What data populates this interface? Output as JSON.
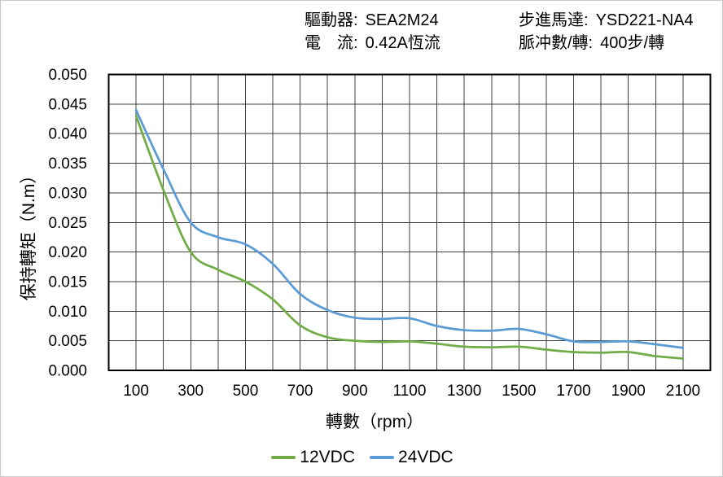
{
  "page": {
    "background": "#ffffff",
    "border_color": "#c9c9c9"
  },
  "header": {
    "rows": [
      {
        "label": "驅動器:",
        "value": "SEA2M24"
      },
      {
        "label": "電　流:",
        "value": "0.42A恆流"
      },
      {
        "label": "步進馬達:",
        "value": "YSD221-NA4"
      },
      {
        "label": "脈冲數/轉:",
        "value": "400步/轉"
      }
    ]
  },
  "chart_data": {
    "type": "line",
    "title": "",
    "xlabel": "轉數（rpm）",
    "ylabel": "保持轉矩（N.m）",
    "x": [
      100,
      200,
      300,
      400,
      500,
      600,
      700,
      800,
      900,
      1000,
      1100,
      1200,
      1300,
      1400,
      1500,
      1600,
      1700,
      1800,
      1900,
      2000,
      2100
    ],
    "series": [
      {
        "name": "12VDC",
        "color": "#70AD47",
        "values": [
          0.043,
          0.0305,
          0.02,
          0.017,
          0.015,
          0.012,
          0.0076,
          0.0056,
          0.005,
          0.0048,
          0.0049,
          0.0045,
          0.004,
          0.0039,
          0.004,
          0.0035,
          0.0031,
          0.003,
          0.0031,
          0.0024,
          0.002
        ]
      },
      {
        "name": "24VDC",
        "color": "#5B9BD5",
        "values": [
          0.044,
          0.034,
          0.025,
          0.0225,
          0.0213,
          0.018,
          0.0129,
          0.0102,
          0.0089,
          0.0087,
          0.0088,
          0.0075,
          0.0068,
          0.0067,
          0.007,
          0.0061,
          0.0049,
          0.0048,
          0.0049,
          0.0044,
          0.0038
        ]
      }
    ],
    "xlim": [
      0,
      2200
    ],
    "ylim": [
      0,
      0.05
    ],
    "x_ticks": [
      100,
      300,
      500,
      700,
      900,
      1100,
      1300,
      1500,
      1700,
      1900,
      2100
    ],
    "y_ticks": [
      0,
      0.005,
      0.01,
      0.015,
      0.02,
      0.025,
      0.03,
      0.035,
      0.04,
      0.045,
      0.05
    ],
    "y_tick_decimals": 3,
    "grid_x_step": 100,
    "grid_y_step": 0.005,
    "grid": true,
    "grid_color": "#3f3f3f",
    "axis_color": "#000000",
    "smooth": true,
    "legend_position": "bottom"
  }
}
